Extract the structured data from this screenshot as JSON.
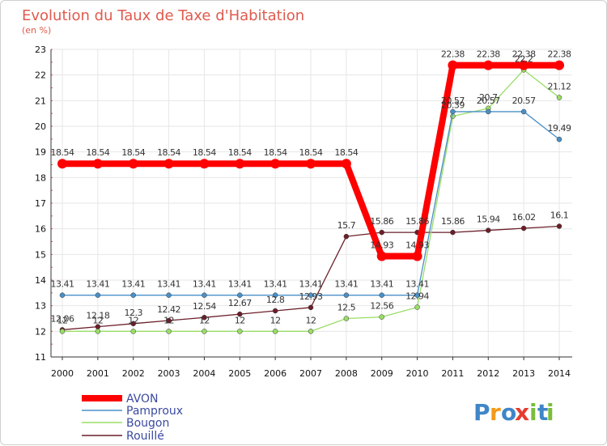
{
  "chart_data": {
    "type": "line",
    "title": "Evolution du Taux de Taxe d'Habitation",
    "subtitle": "(en %)",
    "xlabel": "",
    "ylabel": "(en %)",
    "x": [
      2000,
      2001,
      2002,
      2003,
      2004,
      2005,
      2006,
      2007,
      2008,
      2009,
      2010,
      2011,
      2012,
      2013,
      2014
    ],
    "ylim": [
      11,
      23
    ],
    "yticks": [
      11,
      12,
      13,
      14,
      15,
      16,
      17,
      18,
      19,
      20,
      21,
      22,
      23
    ],
    "grid": true,
    "legend_position": "bottom-left",
    "series": [
      {
        "name": "AVON",
        "color": "#ff0000",
        "values": [
          18.54,
          18.54,
          18.54,
          18.54,
          18.54,
          18.54,
          18.54,
          18.54,
          18.54,
          14.93,
          14.93,
          22.38,
          22.38,
          22.38,
          22.38
        ]
      },
      {
        "name": "Pamproux",
        "color": "#4a90c8",
        "values": [
          13.41,
          13.41,
          13.41,
          13.41,
          13.41,
          13.41,
          13.41,
          13.41,
          13.41,
          13.41,
          13.41,
          20.57,
          20.57,
          20.57,
          19.49
        ]
      },
      {
        "name": "Bougon",
        "color": "#99dd66",
        "values": [
          12,
          12,
          12,
          12,
          12,
          12,
          12,
          12,
          12.5,
          12.56,
          12.94,
          20.39,
          20.7,
          22.2,
          21.12
        ]
      },
      {
        "name": "Rouillé",
        "color": "#6b1f2a",
        "values": [
          12.06,
          12.18,
          12.3,
          12.42,
          12.54,
          12.67,
          12.8,
          12.93,
          15.7,
          15.86,
          15.86,
          15.86,
          15.94,
          16.02,
          16.1
        ]
      }
    ],
    "labels": [
      {
        "series": "AVON",
        "labels": [
          "18.54",
          "18.54",
          "18.54",
          "18.54",
          "18.54",
          "18.54",
          "18.54",
          "18.54",
          "18.54",
          "14.93",
          "14.93",
          "22.38",
          "22.38",
          "22.38",
          "22.38"
        ]
      },
      {
        "series": "Pamproux",
        "labels": [
          "13.41",
          "13.41",
          "13.41",
          "13.41",
          "13.41",
          "13.41",
          "13.41",
          "13.41",
          "13.41",
          "13.41",
          "13.41",
          "20.57",
          "20.57",
          "20.57",
          "19.49"
        ]
      },
      {
        "series": "Bougon",
        "labels": [
          "12",
          "12",
          "12",
          "12",
          "12",
          "12",
          "12",
          "12",
          "12.5",
          "12.56",
          "12.94",
          "20.39",
          "20.7",
          "22.2",
          "21.12"
        ]
      },
      {
        "series": "Rouillé",
        "labels": [
          "12.06",
          "12.18",
          "12.3",
          "12.42",
          "12.54",
          "12.67",
          "12.8",
          "12.93",
          "15.7",
          "15.86",
          "15.86",
          "15.86",
          "15.94",
          "16.02",
          "16.1"
        ]
      }
    ]
  },
  "logo": {
    "text": "Proxiti",
    "letters": [
      "P",
      "r",
      "o",
      "x",
      "i",
      "t",
      "i"
    ],
    "colors": [
      "#3f86c8",
      "#f39a1b",
      "#3f86c8",
      "#e63b2e",
      "#7bbd3a",
      "#3f86c8",
      "#7bbd3a"
    ]
  }
}
